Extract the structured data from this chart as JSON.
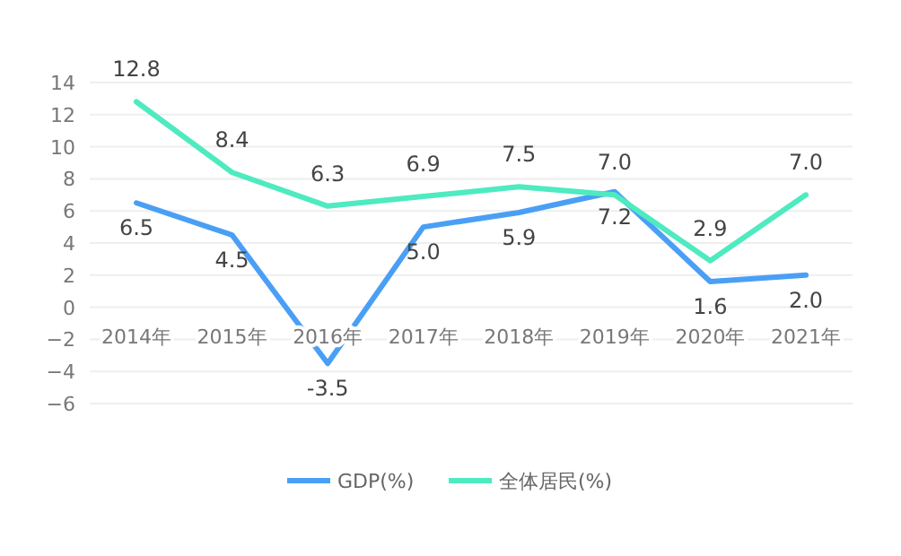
{
  "chart_data": {
    "type": "line",
    "categories": [
      "2014年",
      "2015年",
      "2016年",
      "2017年",
      "2018年",
      "2019年",
      "2020年",
      "2021年"
    ],
    "series": [
      {
        "name": "GDP(%)",
        "color": "#4a9ff5",
        "values": [
          6.5,
          4.5,
          -3.5,
          5.0,
          5.9,
          7.2,
          1.6,
          2.0
        ],
        "value_labels": [
          "6.5",
          "4.5",
          "-3.5",
          "5.0",
          "5.9",
          "7.2",
          "1.6",
          "2.0"
        ]
      },
      {
        "name": "全体居民(%)",
        "color": "#4eeac0",
        "values": [
          12.8,
          8.4,
          6.3,
          6.9,
          7.5,
          7.0,
          2.9,
          7.0
        ],
        "value_labels": [
          "12.8",
          "8.4",
          "6.3",
          "6.9",
          "7.5",
          "7.0",
          "2.9",
          "7.0"
        ]
      }
    ],
    "ylim": [
      -6,
      14
    ],
    "yticks": [
      {
        "value": -6,
        "label": "−6"
      },
      {
        "value": -4,
        "label": "−4"
      },
      {
        "value": -2,
        "label": "−2"
      },
      0,
      2,
      4,
      6,
      8,
      10,
      12,
      14
    ],
    "grid": "y",
    "legend": "bottom",
    "marker": "none",
    "line_style": "solid"
  }
}
